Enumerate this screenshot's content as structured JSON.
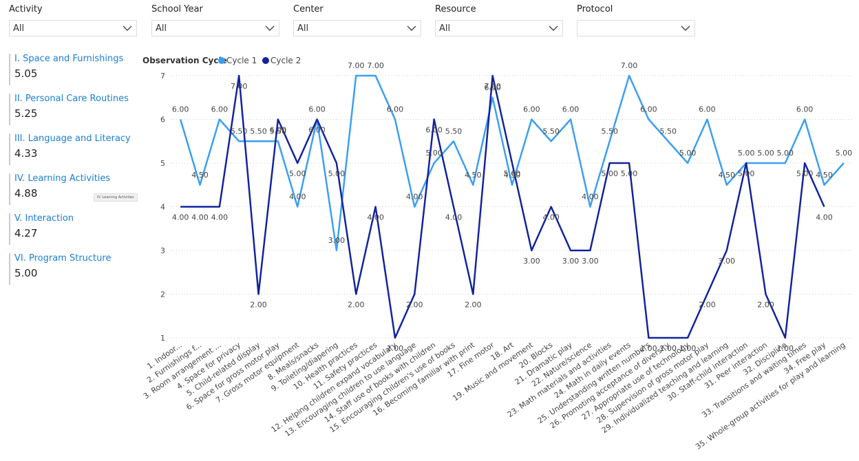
{
  "filters": [
    {
      "label": "Activity",
      "value": "All"
    },
    {
      "label": "School Year",
      "value": "All"
    },
    {
      "label": "Center",
      "value": "All"
    },
    {
      "label": "Resource",
      "value": "All"
    },
    {
      "label": "Protocol"
    }
  ],
  "kpis": [
    {
      "title": "I. Space and Furnishings",
      "value": "5.05"
    },
    {
      "title": "II. Personal Care Routines",
      "value": "5.25"
    },
    {
      "title": "III. Language and Literacy",
      "value": "4.33"
    },
    {
      "title": "IV. Learning Activities",
      "value": "4.88"
    },
    {
      "title": "V. Interaction",
      "value": "4.27"
    },
    {
      "title": "VI. Program Structure",
      "value": "5.00"
    }
  ],
  "tooltip": "IV. Learning Activities",
  "chart_data": {
    "type": "line",
    "legend_title": "Observation Cycle",
    "categories": [
      "1. Indoor...",
      "2. Furnishings f...",
      "3. Room arrangement ...",
      "4. Space for privacy",
      "5. Child-related display",
      "6. Space for gross motor play",
      "7. Gross motor equipment",
      "8. Meals/snacks",
      "9. Toileting/diapering",
      "10. Health practices",
      "11. Safety practices",
      "12. Helping children expand vocabulary",
      "13. Encouraging children to use language",
      "14. Staff use of books with children",
      "15. Encouraging children's use of books",
      "16. Becoming familiar with print",
      "17. Fine motor",
      "18. Art",
      "19. Music and movement",
      "20. Blocks",
      "21. Dramatic play",
      "22. Nature/science",
      "23. Math materials and activities",
      "24. Math in daily events",
      "25. Understanding written numbers",
      "26. Promoting acceptance of diversity",
      "27. Appropriate use of technology",
      "28. Supervision of gross motor play",
      "29. Individualized teaching and learning",
      "30. Staff-child interaction",
      "31. Peer interaction",
      "32. Discipline",
      "33. Transitions and waiting times",
      "34. Free play",
      "35. Whole-group activities for play and learning"
    ],
    "series": [
      {
        "name": "Cycle 1",
        "color": "#3a9ff2",
        "values": [
          6,
          4.5,
          6,
          5.5,
          5.5,
          5.5,
          4,
          6,
          3,
          7,
          7,
          6,
          4,
          5,
          5.5,
          4.5,
          6.5,
          4.5,
          6,
          5.5,
          6,
          4,
          5.5,
          7,
          6,
          5.5,
          5,
          6,
          4.5,
          5,
          5,
          5,
          6,
          4.5,
          5
        ],
        "value_labels": [
          "6.00",
          "4.50",
          "6.00",
          "5.50",
          "5.50",
          "5.50",
          "4.00",
          "6.00",
          "3.00",
          "7.00",
          "7.00",
          "6.00",
          "4.00",
          "5.00",
          "5.50",
          "4.50",
          "6.50",
          "4.50",
          "6.00",
          "5.50",
          "6.00",
          "4.00",
          "5.50",
          "7.00",
          "6.00",
          "5.50",
          "5.00",
          "6.00",
          "4.50",
          "5.00",
          "5.00",
          "5.00",
          "6.00",
          "4.50",
          "5.00"
        ]
      },
      {
        "name": "Cycle 2",
        "color": "#12239e",
        "values": [
          4,
          4,
          4,
          7,
          2,
          6,
          5,
          6,
          5,
          2,
          4,
          1,
          2,
          6,
          4,
          2,
          7,
          5,
          3,
          4,
          3,
          3,
          5,
          5,
          1,
          1,
          1,
          2,
          3,
          5,
          2,
          1,
          5,
          4,
          null
        ],
        "value_labels": [
          "4.00",
          "4.00",
          "4.00",
          "7.00",
          "2.00",
          "6.00",
          "5.00",
          "6.00",
          "5.00",
          "2.00",
          "4.00",
          "1.00",
          "2.00",
          "6.00",
          "4.00",
          "2.00",
          "7.00",
          "5.00",
          "3.00",
          "4.00",
          "3.00",
          "3.00",
          "5.00",
          "5.00",
          "1.00",
          "1.00",
          "1.00",
          "2.00",
          "3.00",
          "5.00",
          "2.00",
          "1.00",
          "5.00",
          "4.00",
          null
        ]
      }
    ],
    "ylim": [
      1,
      7
    ],
    "yticks": [
      1,
      2,
      3,
      4,
      5,
      6,
      7
    ],
    "grid": true
  }
}
